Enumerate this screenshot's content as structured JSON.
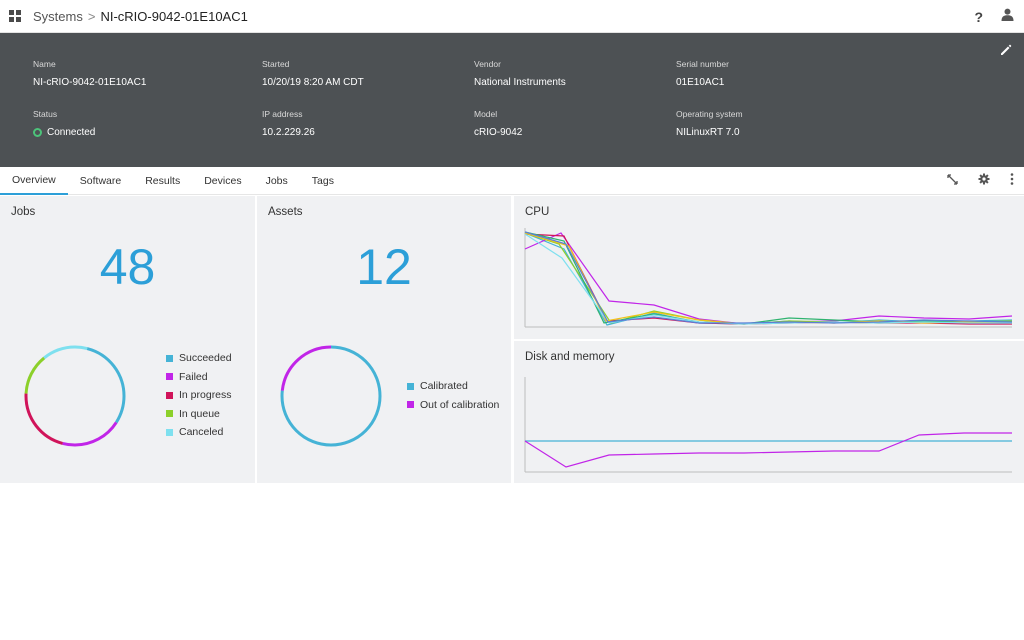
{
  "breadcrumb": {
    "parent": "Systems",
    "separator": ">",
    "current": "NI-cRIO-9042-01E10AC1"
  },
  "top_right": {
    "help": "?"
  },
  "details": {
    "name": {
      "label": "Name",
      "value": "NI-cRIO-9042-01E10AC1"
    },
    "started": {
      "label": "Started",
      "value": "10/20/19 8:20 AM CDT"
    },
    "vendor": {
      "label": "Vendor",
      "value": "National Instruments"
    },
    "serial": {
      "label": "Serial number",
      "value": "01E10AC1"
    },
    "status": {
      "label": "Status",
      "value": "Connected"
    },
    "ip": {
      "label": "IP address",
      "value": "10.2.229.26"
    },
    "model": {
      "label": "Model",
      "value": "cRIO-9042"
    },
    "os": {
      "label": "Operating system",
      "value": "NILinuxRT 7.0"
    }
  },
  "tabs": [
    "Overview",
    "Software",
    "Results",
    "Devices",
    "Jobs",
    "Tags"
  ],
  "jobs": {
    "title": "Jobs",
    "count": "48",
    "legend": [
      {
        "label": "Succeeded",
        "color": "#45b3d6"
      },
      {
        "label": "Failed",
        "color": "#c125e8"
      },
      {
        "label": "In progress",
        "color": "#d0145a"
      },
      {
        "label": "In queue",
        "color": "#8cd02a"
      },
      {
        "label": "Canceled",
        "color": "#7ee0ef"
      }
    ]
  },
  "assets": {
    "title": "Assets",
    "count": "12",
    "legend": [
      {
        "label": "Calibrated",
        "color": "#45b3d6"
      },
      {
        "label": "Out of calibration",
        "color": "#c125e8"
      }
    ]
  },
  "cpu": {
    "title": "CPU"
  },
  "disk_memory": {
    "title": "Disk and memory"
  },
  "colors": {
    "accent": "#2c9fd8",
    "header_bg": "#4d5154",
    "connected": "#4cc37a"
  }
}
